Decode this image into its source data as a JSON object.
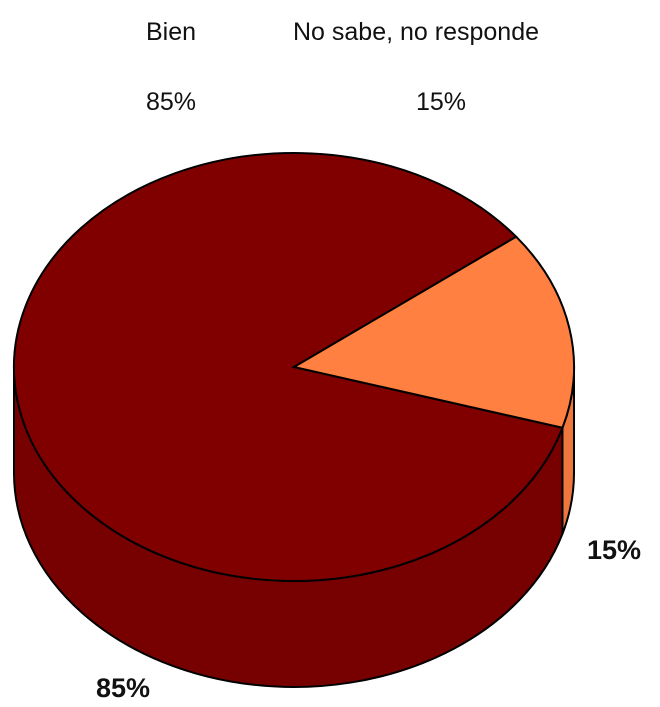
{
  "chart_data": {
    "type": "pie",
    "categories": [
      "Bien",
      "No sabe, no responde"
    ],
    "values": [
      85,
      15
    ],
    "value_labels": [
      "85%",
      "15%"
    ],
    "colors": [
      "#800000",
      "#FF8040"
    ],
    "title": "",
    "three_d": true,
    "legend_placement": "top"
  }
}
